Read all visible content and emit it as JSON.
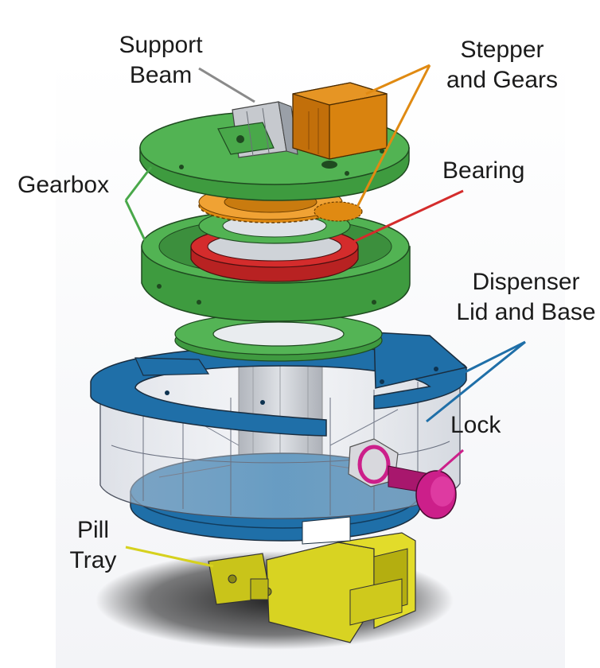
{
  "labels": {
    "support_beam": [
      "Support",
      "Beam"
    ],
    "stepper_and_gears": [
      "Stepper",
      "and Gears"
    ],
    "gearbox": "Gearbox",
    "bearing": "Bearing",
    "dispenser_lid_and_base": [
      "Dispenser",
      "Lid and Base"
    ],
    "lock": "Lock",
    "pill_tray": [
      "Pill",
      "Tray"
    ]
  },
  "colors": {
    "gearbox": "#49a84a",
    "stepper_and_gears": "#e08a12",
    "bearing": "#d42c2c",
    "dispenser_lid_and_base": "#1f6fa8",
    "lock": "#cc1f8a",
    "pill_tray": "#d6d11e",
    "support_beam": "#8a8a8a"
  }
}
